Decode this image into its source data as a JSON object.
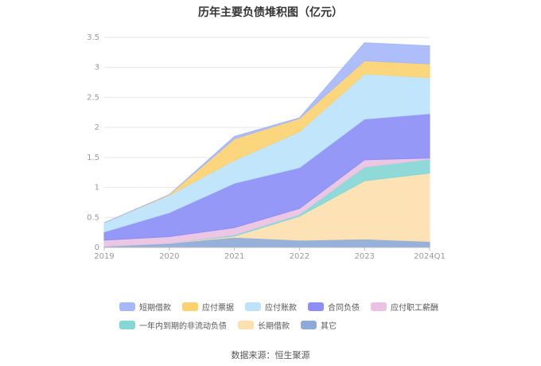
{
  "chart_data": {
    "type": "area",
    "stacked": true,
    "title": "历年主要负债堆积图（亿元）",
    "categories": [
      "2019",
      "2020",
      "2021",
      "2022",
      "2023",
      "2024Q1"
    ],
    "ylim": [
      0,
      3.5
    ],
    "yticks": [
      "0",
      "0.5",
      "1",
      "1.5",
      "2",
      "2.5",
      "3",
      "3.5"
    ],
    "grid": true,
    "legend_position": "bottom",
    "series": [
      {
        "name": "其它",
        "color": "#8eaad8",
        "values": [
          0.02,
          0.07,
          0.17,
          0.12,
          0.14,
          0.1
        ]
      },
      {
        "name": "长期借款",
        "color": "#fde0b0",
        "values": [
          0,
          0,
          0.02,
          0.4,
          0.97,
          1.14
        ]
      },
      {
        "name": "一年内到期的非流动负债",
        "color": "#86d6d6",
        "values": [
          0,
          0,
          0.02,
          0.03,
          0.23,
          0.23
        ]
      },
      {
        "name": "应付职工薪酬",
        "color": "#eac2e2",
        "values": [
          0.1,
          0.11,
          0.12,
          0.1,
          0.12,
          0.02
        ]
      },
      {
        "name": "合同负债",
        "color": "#8c8ff5",
        "values": [
          0.14,
          0.4,
          0.74,
          0.68,
          0.68,
          0.74
        ]
      },
      {
        "name": "应付账款",
        "color": "#bce3fb",
        "values": [
          0.15,
          0.29,
          0.38,
          0.6,
          0.75,
          0.6
        ]
      },
      {
        "name": "应付票据",
        "color": "#fcd271",
        "values": [
          0,
          0.01,
          0.36,
          0.22,
          0.22,
          0.23
        ]
      },
      {
        "name": "短期借款",
        "color": "#a6b8fa",
        "values": [
          0,
          0,
          0.04,
          0.01,
          0.3,
          0.3
        ]
      }
    ]
  },
  "legend_rows": [
    [
      "短期借款",
      "应付票据",
      "应付账款",
      "合同负债",
      "应付职工薪酬"
    ],
    [
      "一年内到期的非流动负债",
      "长期借款",
      "其它"
    ]
  ],
  "source": "数据来源：恒生聚源"
}
